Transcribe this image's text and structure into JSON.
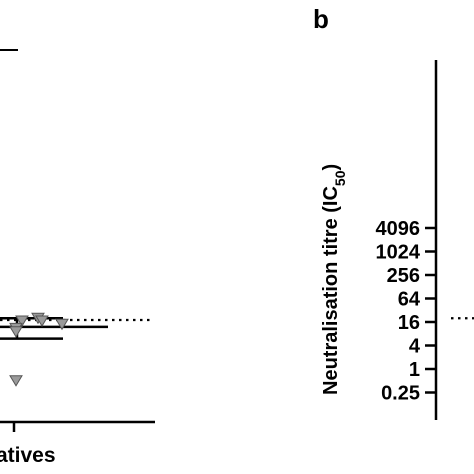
{
  "chart_data": [
    {
      "type": "scatter",
      "panel": "a",
      "categories": [
        "Negatives"
      ],
      "category_label_visible": "atives",
      "series": [
        {
          "marker": "down-triangle",
          "color": "#9a9a9a",
          "points": [
            {
              "x": "Negatives",
              "y": 20
            },
            {
              "x": "Negatives",
              "y": 17
            },
            {
              "x": "Negatives",
              "y": 17
            },
            {
              "x": "Negatives",
              "y": 14
            },
            {
              "x": "Negatives",
              "y": 11
            },
            {
              "x": "Negatives",
              "y": 9
            },
            {
              "x": "Negatives",
              "y": 0.5
            }
          ]
        }
      ],
      "summary_lines": {
        "upper": 20,
        "middle": 12,
        "lower": 6
      },
      "threshold_line": {
        "y": 18,
        "style": "dotted"
      },
      "y_scale": "log2",
      "ylim": [
        0.25,
        8192
      ]
    },
    {
      "type": "scatter",
      "panel": "b",
      "panel_label": "b",
      "ylabel": "Neutralisation titre (IC",
      "ylabel_sub": "50",
      "ylabel_close": ")",
      "y_scale": "log2",
      "ylim": [
        0.25,
        8192
      ],
      "y_ticks": [
        0.25,
        1,
        4,
        16,
        64,
        256,
        1024,
        4096
      ],
      "y_tick_labels": [
        "0.25",
        "1",
        "4",
        "16",
        "64",
        "256",
        "1024",
        "4096"
      ],
      "threshold_line": {
        "y": 20,
        "style": "dotted"
      }
    }
  ]
}
